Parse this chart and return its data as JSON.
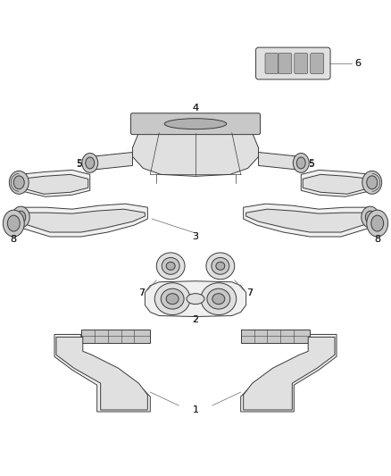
{
  "background_color": "#ffffff",
  "fig_width": 4.38,
  "fig_height": 5.33,
  "dpi": 100,
  "line_color": "#3a3a3a",
  "line_width": 0.7,
  "fill_light": "#f0f0f0",
  "fill_mid": "#e0e0e0",
  "fill_dark": "#c8c8c8",
  "fill_darker": "#b0b0b0",
  "label_color": "#222222",
  "leader_color": "#666666"
}
